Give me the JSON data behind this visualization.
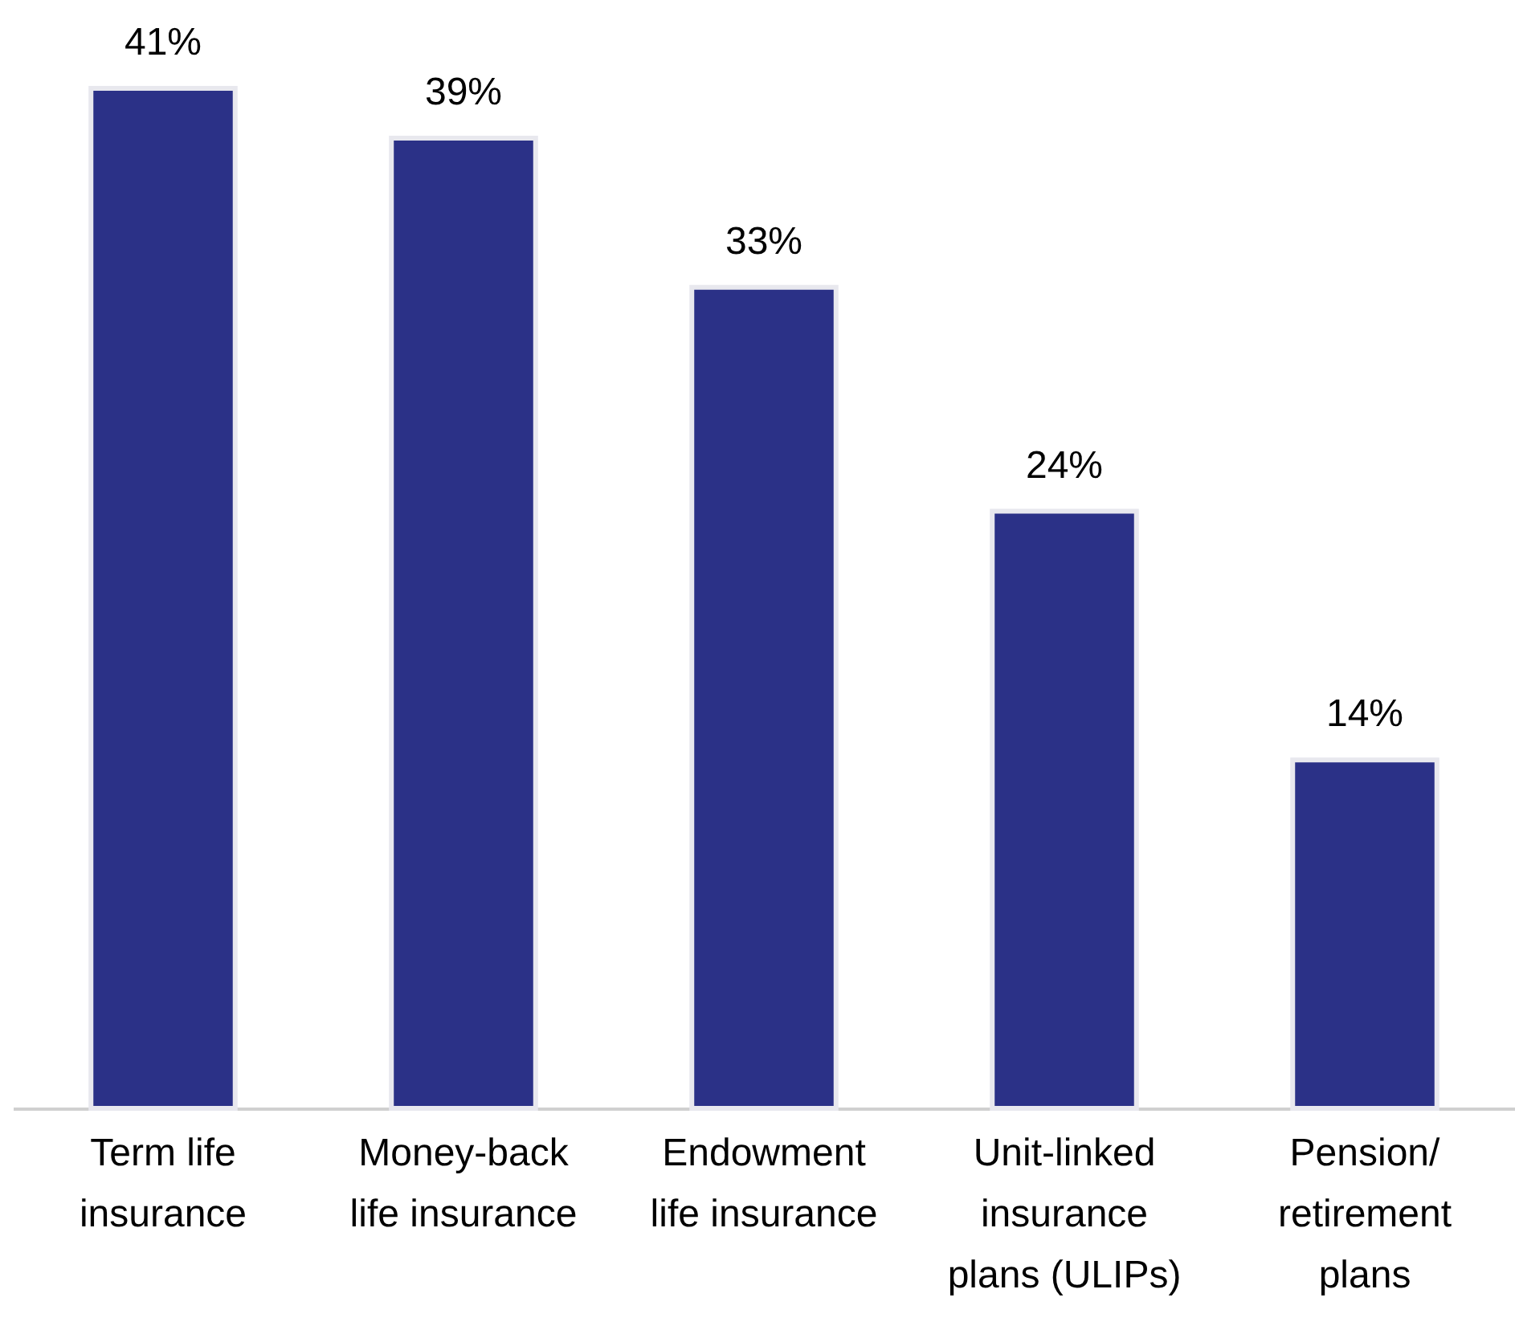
{
  "chart_data": {
    "type": "bar",
    "categories": [
      "Term life\ninsurance",
      "Money-back\nlife insurance",
      "Endowment\nlife insurance",
      "Unit-linked\ninsurance\nplans (ULIPs)",
      "Pension/\nretirement\nplans"
    ],
    "values": [
      41,
      39,
      33,
      24,
      14
    ],
    "value_labels": [
      "41%",
      "39%",
      "33%",
      "24%",
      "14%"
    ],
    "color": "#2b3187"
  }
}
